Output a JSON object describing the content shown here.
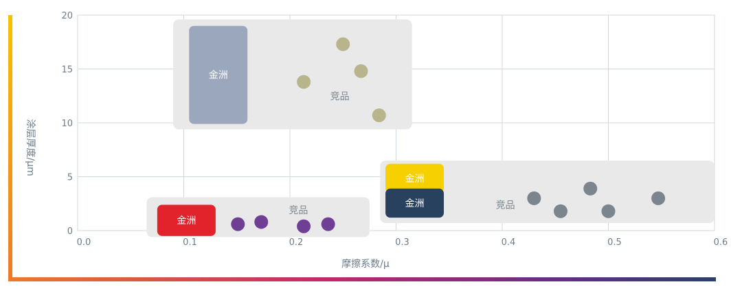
{
  "chart_data": {
    "type": "scatter",
    "title": "",
    "xlabel": "摩擦系数/μ",
    "ylabel": "涂层厚度/μm",
    "xlim": [
      0,
      0.6
    ],
    "ylim": [
      0,
      20
    ],
    "xticks": [
      "0.0",
      "0.1",
      "0.2",
      "0.3",
      "0.4",
      "0.5",
      "0.6"
    ],
    "yticks": [
      "0",
      "5",
      "10",
      "15",
      "20"
    ],
    "grid": true,
    "series": [
      {
        "color": "#b8b48c",
        "points": [
          [
            0.213,
            13.8
          ],
          [
            0.25,
            17.3
          ],
          [
            0.267,
            14.8
          ],
          [
            0.284,
            10.7
          ]
        ]
      },
      {
        "color": "#6e3f94",
        "points": [
          [
            0.151,
            0.6
          ],
          [
            0.173,
            0.8
          ],
          [
            0.213,
            0.4
          ],
          [
            0.236,
            0.6
          ]
        ]
      },
      {
        "color": "#7a858d",
        "points": [
          [
            0.43,
            3.0
          ],
          [
            0.455,
            1.8
          ],
          [
            0.483,
            3.9
          ],
          [
            0.5,
            1.8
          ],
          [
            0.547,
            3.0
          ]
        ]
      }
    ],
    "regions": [
      {
        "label": "竞品",
        "x": [
          0.09,
          0.315
        ],
        "y": [
          9.4,
          19.6
        ],
        "color": "#e9e9e9",
        "text_color": "#7a8790"
      },
      {
        "label": "竞品",
        "x": [
          0.065,
          0.275
        ],
        "y": [
          -0.6,
          3.1
        ],
        "color": "#e9e9e9",
        "text_color": "#7a8790"
      },
      {
        "label": "竞品",
        "x": [
          0.285,
          0.6
        ],
        "y": [
          0.7,
          6.5
        ],
        "color": "#e9e9e9",
        "text_color": "#7a8790"
      }
    ],
    "highlights": [
      {
        "label": "金洲",
        "x": [
          0.105,
          0.16
        ],
        "y": [
          9.9,
          19.0
        ],
        "color": "#9aa7bc",
        "text_color": "#ffffff"
      },
      {
        "label": "金洲",
        "x": [
          0.075,
          0.13
        ],
        "y": [
          -0.5,
          2.4
        ],
        "color": "#e3232c",
        "text_color": "#ffffff"
      },
      {
        "label": "金洲",
        "x": [
          0.29,
          0.345
        ],
        "y": [
          3.5,
          6.2
        ],
        "color": "#f7d000",
        "text_color": "#ffffff"
      },
      {
        "label": "金洲",
        "x": [
          0.29,
          0.345
        ],
        "y": [
          1.2,
          3.9
        ],
        "color": "#27415e",
        "text_color": "#ffffff"
      }
    ]
  }
}
